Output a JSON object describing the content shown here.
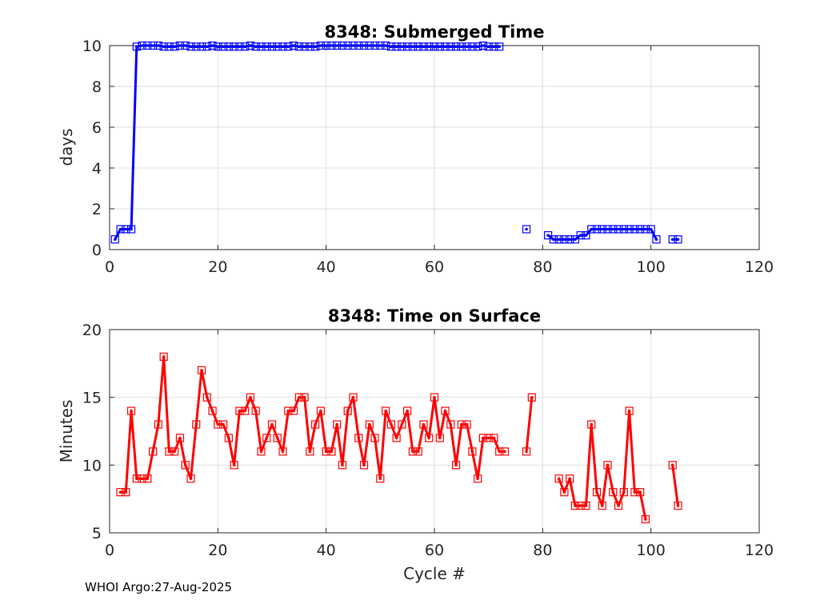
{
  "footer": "WHOI Argo:27-Aug-2025",
  "chart_data": [
    {
      "type": "line",
      "title": "8348: Submerged Time",
      "xlabel": "",
      "ylabel": "days",
      "xlim": [
        0,
        120
      ],
      "ylim": [
        0,
        10
      ],
      "xticks": [
        0,
        20,
        40,
        60,
        80,
        100,
        120
      ],
      "yticks": [
        0,
        2,
        4,
        6,
        8,
        10
      ],
      "grid": true,
      "color": "#0000ff",
      "series": [
        {
          "name": "submerged-time",
          "x": [
            1,
            2,
            3,
            4,
            5,
            6,
            7,
            8,
            9,
            10,
            11,
            12,
            13,
            14,
            15,
            16,
            17,
            18,
            19,
            20,
            21,
            22,
            23,
            24,
            25,
            26,
            27,
            28,
            29,
            30,
            31,
            32,
            33,
            34,
            35,
            36,
            37,
            38,
            39,
            40,
            41,
            42,
            43,
            44,
            45,
            46,
            47,
            48,
            49,
            50,
            51,
            52,
            53,
            54,
            55,
            56,
            57,
            58,
            59,
            60,
            61,
            62,
            63,
            64,
            65,
            66,
            67,
            68,
            69,
            70,
            71,
            72,
            77,
            81,
            82,
            83,
            84,
            85,
            86,
            87,
            88,
            89,
            90,
            91,
            92,
            93,
            94,
            95,
            96,
            97,
            98,
            99,
            100,
            101,
            104,
            105
          ],
          "y": [
            0.5,
            1.0,
            1.0,
            1.0,
            9.95,
            10.0,
            10.0,
            10.0,
            10.0,
            9.95,
            9.95,
            9.95,
            10.0,
            10.0,
            9.95,
            9.95,
            9.95,
            9.95,
            10.0,
            9.95,
            9.95,
            9.95,
            9.95,
            9.95,
            9.95,
            10.0,
            9.95,
            9.95,
            9.95,
            9.95,
            9.95,
            9.95,
            9.95,
            10.0,
            9.95,
            9.95,
            9.95,
            9.95,
            10.0,
            10.0,
            10.0,
            10.0,
            10.0,
            10.0,
            10.0,
            10.0,
            10.0,
            10.0,
            10.0,
            10.0,
            10.0,
            9.95,
            9.95,
            9.95,
            9.95,
            9.95,
            9.95,
            9.95,
            9.95,
            9.95,
            9.95,
            9.95,
            9.95,
            9.95,
            9.95,
            9.95,
            9.95,
            9.95,
            10.0,
            9.95,
            9.95,
            9.95,
            1.0,
            0.7,
            0.5,
            0.5,
            0.5,
            0.5,
            0.5,
            0.7,
            0.7,
            1.0,
            1.0,
            1.0,
            1.0,
            1.0,
            1.0,
            1.0,
            1.0,
            1.0,
            1.0,
            1.0,
            1.0,
            0.5,
            0.5,
            0.5
          ]
        }
      ]
    },
    {
      "type": "line",
      "title": "8348: Time on Surface",
      "xlabel": "Cycle #",
      "ylabel": "Minutes",
      "xlim": [
        0,
        120
      ],
      "ylim": [
        5,
        20
      ],
      "xticks": [
        0,
        20,
        40,
        60,
        80,
        100,
        120
      ],
      "yticks": [
        5,
        10,
        15,
        20
      ],
      "grid": true,
      "color": "#ff0000",
      "series": [
        {
          "name": "surface-time",
          "x": [
            2,
            3,
            4,
            5,
            6,
            7,
            8,
            9,
            10,
            11,
            12,
            13,
            14,
            15,
            16,
            17,
            18,
            19,
            20,
            21,
            22,
            23,
            24,
            25,
            26,
            27,
            28,
            29,
            30,
            31,
            32,
            33,
            34,
            35,
            36,
            37,
            38,
            39,
            40,
            41,
            42,
            43,
            44,
            45,
            46,
            47,
            48,
            49,
            50,
            51,
            52,
            53,
            54,
            55,
            56,
            57,
            58,
            59,
            60,
            61,
            62,
            63,
            64,
            65,
            66,
            67,
            68,
            69,
            70,
            71,
            72,
            73,
            77,
            78,
            83,
            84,
            85,
            86,
            87,
            88,
            89,
            90,
            91,
            92,
            93,
            94,
            95,
            96,
            97,
            98,
            99,
            104,
            105
          ],
          "y": [
            8,
            8,
            14,
            9,
            9,
            9,
            11,
            13,
            18,
            11,
            11,
            12,
            10,
            9,
            13,
            17,
            15,
            14,
            13,
            13,
            12,
            10,
            14,
            14,
            15,
            14,
            11,
            12,
            13,
            12,
            11,
            14,
            14,
            15,
            15,
            11,
            13,
            14,
            11,
            11,
            13,
            10,
            14,
            15,
            12,
            10,
            13,
            12,
            9,
            14,
            13,
            12,
            13,
            14,
            11,
            11,
            13,
            12,
            15,
            12,
            14,
            13,
            10,
            13,
            13,
            11,
            9,
            12,
            12,
            12,
            11,
            11,
            11,
            15,
            9,
            8,
            9,
            7,
            7,
            7,
            13,
            8,
            7,
            10,
            8,
            7,
            8,
            14,
            8,
            8,
            6,
            10,
            7
          ]
        }
      ]
    }
  ]
}
